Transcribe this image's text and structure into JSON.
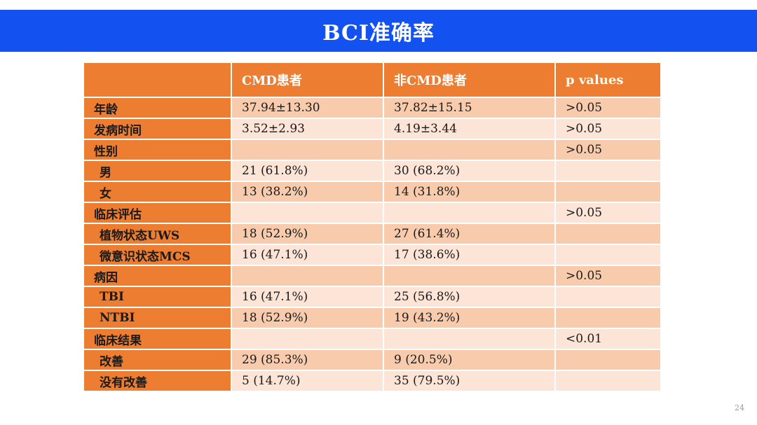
{
  "title": "BCI准确率",
  "page_number": "24",
  "colors": {
    "title_bar": "#1352f0",
    "header_orange": "#ed7d31",
    "row_dark": "#f8cbad",
    "row_light": "#fce4d6"
  },
  "table": {
    "headers": [
      "",
      "CMD患者",
      "非CMD患者",
      "p values"
    ],
    "rows": [
      {
        "label": "年龄",
        "cmd": "37.94±13.30",
        "noncmd": "37.82±15.15",
        "p": ">0.05",
        "sub": false
      },
      {
        "label": "发病时间",
        "cmd": "3.52±2.93",
        "noncmd": "4.19±3.44",
        "p": ">0.05",
        "sub": false
      },
      {
        "label": "性别",
        "cmd": "",
        "noncmd": "",
        "p": ">0.05",
        "sub": false
      },
      {
        "label": "男",
        "cmd": "21 (61.8%)",
        "noncmd": "30 (68.2%)",
        "p": "",
        "sub": true
      },
      {
        "label": "女",
        "cmd": "13 (38.2%)",
        "noncmd": "14 (31.8%)",
        "p": "",
        "sub": true
      },
      {
        "label": "临床评估",
        "cmd": "",
        "noncmd": "",
        "p": ">0.05",
        "sub": false
      },
      {
        "label": "植物状态UWS",
        "cmd": "18 (52.9%)",
        "noncmd": "27 (61.4%)",
        "p": "",
        "sub": true
      },
      {
        "label": "微意识状态MCS",
        "cmd": "16 (47.1%)",
        "noncmd": "17 (38.6%)",
        "p": "",
        "sub": true
      },
      {
        "label": "病因",
        "cmd": "",
        "noncmd": "",
        "p": ">0.05",
        "sub": false
      },
      {
        "label": "TBI",
        "cmd": "16 (47.1%)",
        "noncmd": "25 (56.8%)",
        "p": "",
        "sub": true
      },
      {
        "label": "NTBI",
        "cmd": "18 (52.9%)",
        "noncmd": "19 (43.2%)",
        "p": "",
        "sub": true
      },
      {
        "label": "临床结果",
        "cmd": "",
        "noncmd": "",
        "p": "<0.01",
        "sub": false
      },
      {
        "label": "改善",
        "cmd": "29 (85.3%)",
        "noncmd": "9 (20.5%)",
        "p": "",
        "sub": true
      },
      {
        "label": "没有改善",
        "cmd": "5 (14.7%)",
        "noncmd": "35 (79.5%)",
        "p": "",
        "sub": true
      }
    ]
  }
}
